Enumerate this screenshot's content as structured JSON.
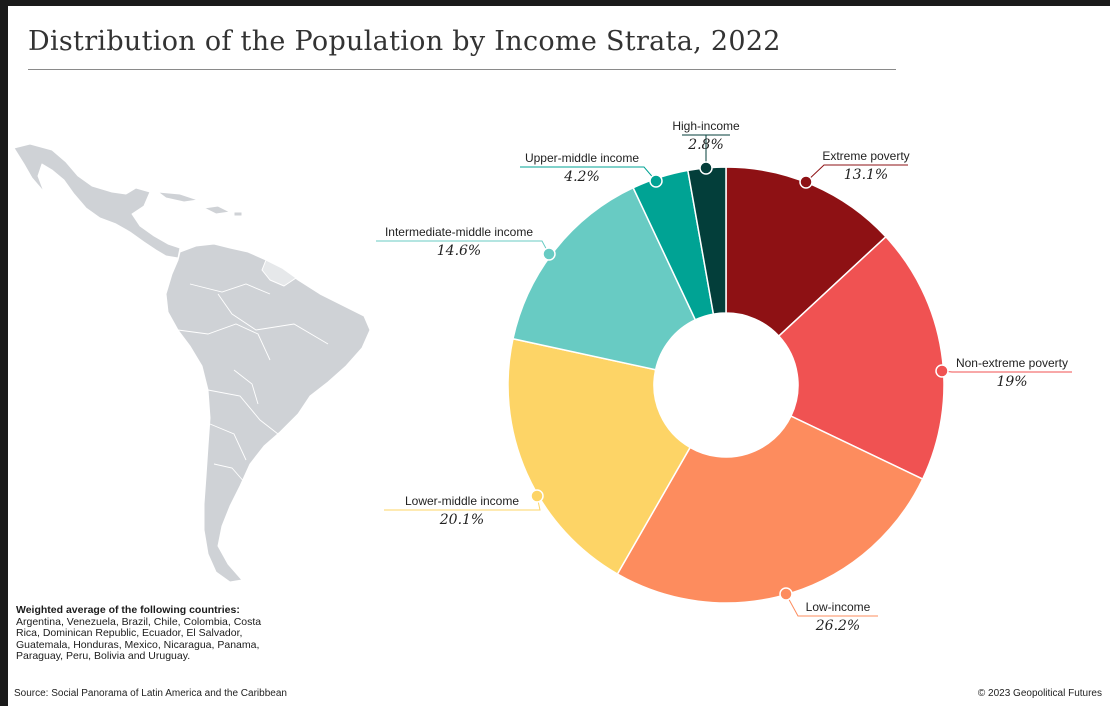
{
  "title": "Distribution of the Population by Income Strata, 2022",
  "note": {
    "heading": "Weighted average of the following countries:",
    "text": "Argentina, Venezuela, Brazil, Chile, Colombia, Costa Rica, Dominican Republic, Ecuador, El Salvador, Guatemala, Honduras, Mexico, Nicaragua, Panama, Paraguay, Peru, Bolivia and Uruguay."
  },
  "source": "Source: Social Panorama of Latin America and the Caribbean",
  "credit": "© 2023 Geopolitical Futures",
  "chart_data": {
    "type": "pie",
    "donut": true,
    "title": "Distribution of the Population by Income Strata, 2022",
    "unit": "%",
    "slices": [
      {
        "name": "Extreme poverty",
        "value": 13.1,
        "label": "13.1%",
        "color": "#8e1114"
      },
      {
        "name": "Non-extreme poverty",
        "value": 19,
        "label": "19%",
        "color": "#f05252"
      },
      {
        "name": "Low-income",
        "value": 26.2,
        "label": "26.2%",
        "color": "#fd8c5e"
      },
      {
        "name": "Lower-middle income",
        "value": 20.1,
        "label": "20.1%",
        "color": "#fdd466"
      },
      {
        "name": "Intermediate-middle income",
        "value": 14.6,
        "label": "14.6%",
        "color": "#68cbc3"
      },
      {
        "name": "Upper-middle income",
        "value": 4.2,
        "label": "4.2%",
        "color": "#00a394"
      },
      {
        "name": "High-income",
        "value": 2.8,
        "label": "2.8%",
        "color": "#033e3a"
      }
    ]
  }
}
